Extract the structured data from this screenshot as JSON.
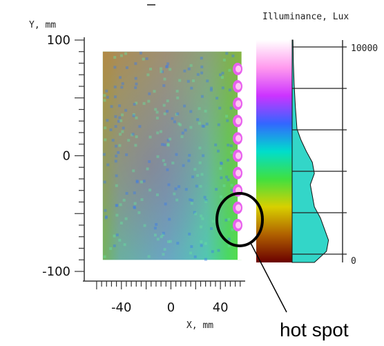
{
  "chart_data": {
    "type": "heatmap",
    "title": "",
    "xlabel": "X, mm",
    "ylabel": "Y, mm",
    "xlim": [
      -70,
      60
    ],
    "ylim": [
      -100,
      100
    ],
    "x_ticks": [
      -40,
      0,
      40
    ],
    "y_ticks": [
      100,
      0,
      -100
    ],
    "data_extent_x": [
      -55,
      57
    ],
    "data_extent_y": [
      -90,
      90
    ],
    "colorbar": {
      "label": "Illuminance, Lux",
      "ticks": [
        10000,
        0
      ],
      "colors": [
        "#6b0000",
        "#b06000",
        "#d8d000",
        "#40e040",
        "#00ddcc",
        "#3366ff",
        "#cc33ff",
        "#ff99ee",
        "#ffffff"
      ]
    },
    "hot_spot_edge_x": 55,
    "hot_spot_y": [
      -60,
      -45,
      -30,
      -15,
      0,
      15,
      30,
      45,
      60,
      75
    ],
    "histogram": [
      {
        "lux": 0,
        "count": 0.55
      },
      {
        "lux": 500,
        "count": 0.85
      },
      {
        "lux": 1000,
        "count": 0.9
      },
      {
        "lux": 1500,
        "count": 0.8
      },
      {
        "lux": 2000,
        "count": 0.7
      },
      {
        "lux": 2500,
        "count": 0.55
      },
      {
        "lux": 3000,
        "count": 0.5
      },
      {
        "lux": 3500,
        "count": 0.45
      },
      {
        "lux": 4000,
        "count": 0.55
      },
      {
        "lux": 4500,
        "count": 0.5
      },
      {
        "lux": 5000,
        "count": 0.35
      },
      {
        "lux": 5500,
        "count": 0.22
      },
      {
        "lux": 6000,
        "count": 0.12
      },
      {
        "lux": 7000,
        "count": 0.08
      },
      {
        "lux": 8000,
        "count": 0.05
      },
      {
        "lux": 9000,
        "count": 0.03
      },
      {
        "lux": 10000,
        "count": 0.02
      }
    ],
    "annotation": "hot spot",
    "grid": false,
    "legend": "none"
  }
}
